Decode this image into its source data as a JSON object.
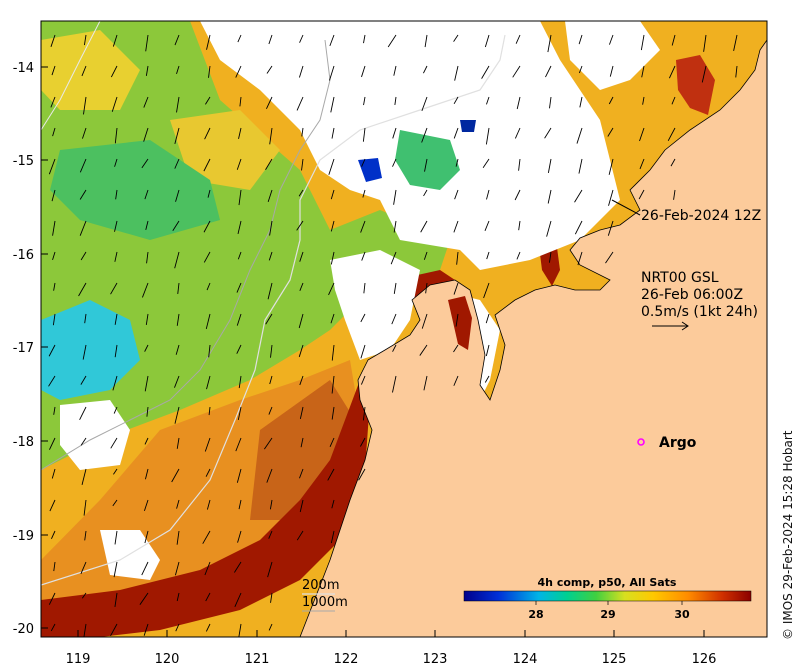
{
  "map": {
    "x_ticks": [
      "119",
      "120",
      "121",
      "122",
      "123",
      "124",
      "125",
      "126"
    ],
    "y_ticks": [
      "-14",
      "-15",
      "-16",
      "-17",
      "-18",
      "-19",
      "-20"
    ],
    "annotation_time": "26-Feb-2024 12Z",
    "current": {
      "line1": "NRT00 GSL",
      "line2": "26-Feb 06:00Z",
      "line3": "0.5m/s (1kt 24h)"
    },
    "argo_label": "Argo",
    "isobaths": {
      "a": "200m",
      "b": "1000m"
    },
    "colorbar": {
      "title": "4h comp, p50, All Sats",
      "ticks": [
        "28",
        "29",
        "30"
      ]
    },
    "credit": "© IMOS 29-Feb-2024 15:28 Hobart",
    "colors": {
      "land": "#fccb9b",
      "cloud": "#ffffff",
      "argo": "#ff00ff"
    }
  }
}
